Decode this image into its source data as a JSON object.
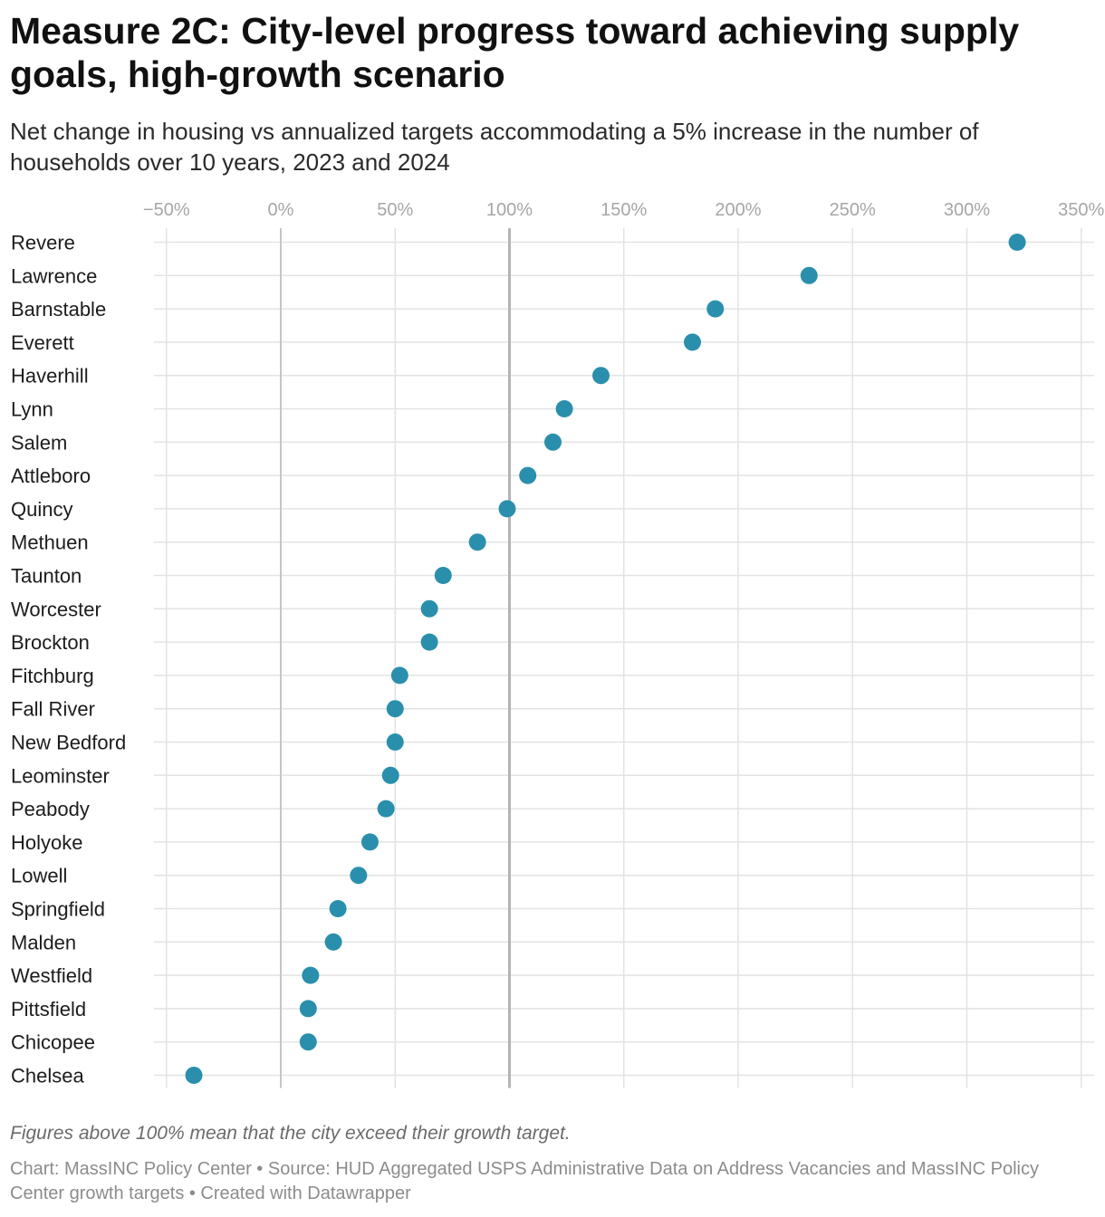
{
  "title": "Measure 2C: City-level progress toward achieving supply goals, high-growth scenario",
  "subtitle": "Net change in housing vs annualized targets accommodating a 5% increase in the number of households over 10 years, 2023 and 2024",
  "note": "Figures above 100% mean that the city exceed their growth target.",
  "footer": "Chart: MassINC Policy Center • Source: HUD Aggregated USPS Administrative Data on Address Vacancies and MassINC Policy Center growth targets • Created with Datawrapper",
  "colors": {
    "dot": "#2a8fac",
    "grid": "#e3e3e3",
    "zero_line": "#c6c6c6",
    "target_line": "#b5b5b5"
  },
  "chart_data": {
    "type": "scatter",
    "orientation": "horizontal dot plot",
    "title": "Measure 2C: City-level progress toward achieving supply goals, high-growth scenario",
    "xlabel": "",
    "ylabel": "",
    "unit": "%",
    "xlim": [
      -55,
      355
    ],
    "xticks": [
      -50,
      0,
      50,
      100,
      150,
      200,
      250,
      300,
      350
    ],
    "xtick_labels": [
      "−50%",
      "0%",
      "50%",
      "100%",
      "150%",
      "200%",
      "250%",
      "300%",
      "350%"
    ],
    "reference_lines": [
      0,
      100
    ],
    "grid": true,
    "categories": [
      "Revere",
      "Lawrence",
      "Barnstable",
      "Everett",
      "Haverhill",
      "Lynn",
      "Salem",
      "Attleboro",
      "Quincy",
      "Methuen",
      "Taunton",
      "Worcester",
      "Brockton",
      "Fitchburg",
      "Fall River",
      "New Bedford",
      "Leominster",
      "Peabody",
      "Holyoke",
      "Lowell",
      "Springfield",
      "Malden",
      "Westfield",
      "Pittsfield",
      "Chicopee",
      "Chelsea"
    ],
    "values": [
      322,
      231,
      190,
      180,
      140,
      124,
      119,
      108,
      99,
      86,
      71,
      65,
      65,
      52,
      50,
      50,
      48,
      46,
      39,
      34,
      25,
      23,
      13,
      12,
      12,
      -38
    ]
  }
}
